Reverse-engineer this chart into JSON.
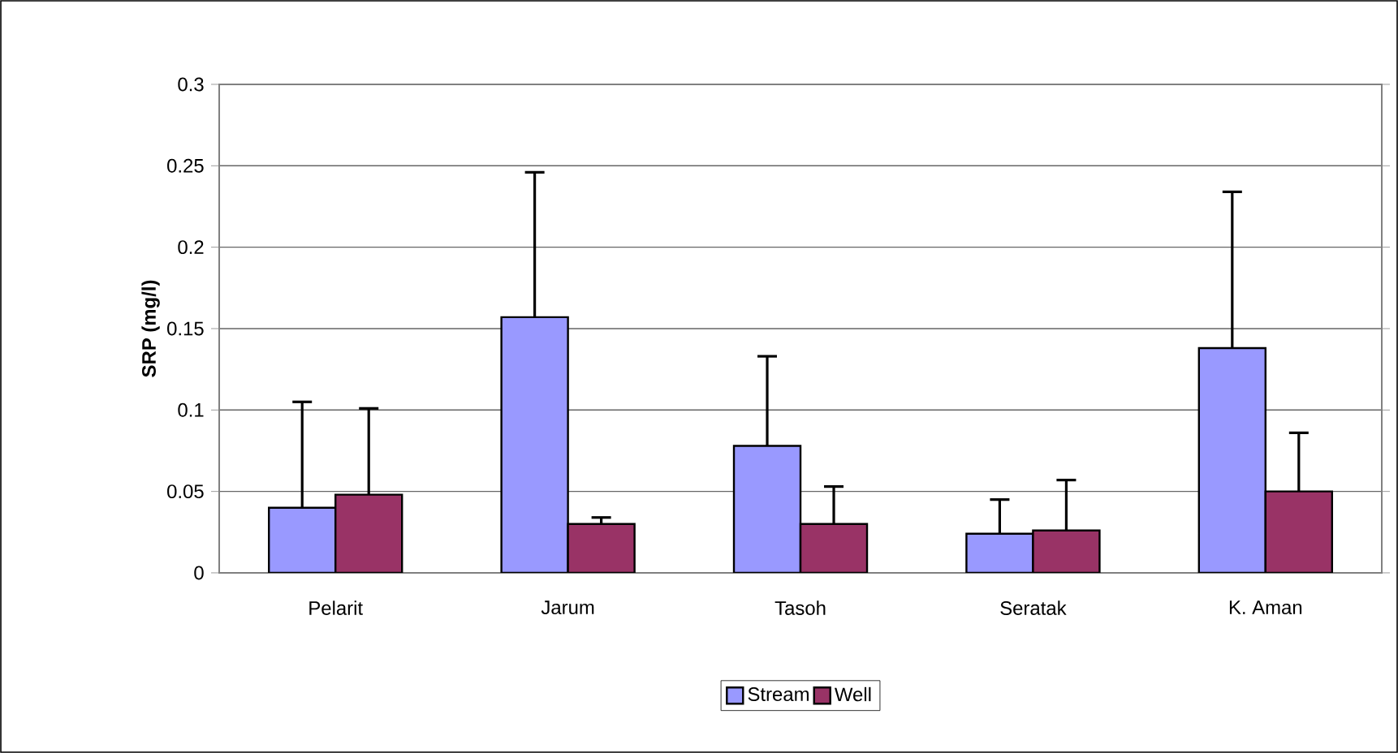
{
  "chart_data": {
    "type": "bar",
    "ylabel": "SRP (mg/l)",
    "categories": [
      "Pelarit",
      "Jarum",
      "Tasoh",
      "Seratak",
      "K. Aman"
    ],
    "series": [
      {
        "name": "Stream",
        "color": "#9999ff",
        "values": [
          0.04,
          0.157,
          0.078,
          0.024,
          0.138
        ],
        "errors": [
          [
            0.04,
            0.105
          ],
          [
            0.157,
            0.246
          ],
          [
            0.078,
            0.133
          ],
          [
            0.024,
            0.045
          ],
          [
            0.138,
            0.234
          ]
        ]
      },
      {
        "name": "Well",
        "color": "#993366",
        "values": [
          0.048,
          0.03,
          0.03,
          0.026,
          0.05
        ],
        "errors": [
          [
            0.048,
            0.101
          ],
          [
            0.03,
            0.034
          ],
          [
            0.03,
            0.053
          ],
          [
            0.026,
            0.057
          ],
          [
            0.05,
            0.086
          ]
        ]
      }
    ],
    "ylim": [
      0,
      0.3
    ],
    "yticks": [
      0,
      0.05,
      0.1,
      0.15,
      0.2,
      0.25,
      0.3
    ],
    "grid": "y",
    "legend": "bottom"
  }
}
